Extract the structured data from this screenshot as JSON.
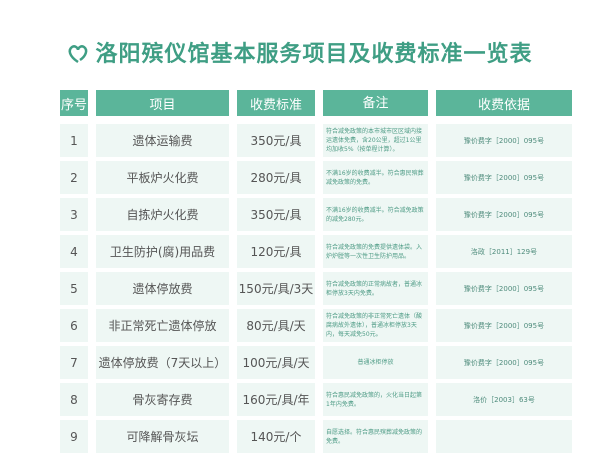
{
  "title": "洛阳殡仪馆基本服务项目及收费标准一览表",
  "headers": [
    "序号",
    "项目",
    "收费标准",
    "备注",
    "收费依据"
  ],
  "rows": [
    {
      "no": "1",
      "item": "遗体运输费",
      "price": "350元/具",
      "note": "符合减免政策的本市城市区区域内接运遗体免费，含20公里，超过1公里均加收5%（按单程计算）。",
      "basis": "豫价费字［2000］095号"
    },
    {
      "no": "2",
      "item": "平板炉火化费",
      "price": "280元/具",
      "note": "不满16岁的收费减半。符合惠民殡葬减免政策的免费。",
      "basis": "豫价费字［2000］095号"
    },
    {
      "no": "3",
      "item": "自拣炉火化费",
      "price": "350元/具",
      "note": "不满16岁的收费减半。符合减免政策的减免280元。",
      "basis": "豫价费字［2000］095号"
    },
    {
      "no": "4",
      "item": "卫生防护(腐)用品费",
      "price": "120元/具",
      "note": "符合减免政策的免费提供遗体袋。入炉炉膛等一次性卫生防护用品。",
      "basis": "洛政［2011］129号"
    },
    {
      "no": "5",
      "item": "遗体停放费",
      "price": "150元/具/3天",
      "note": "符合减免政策的正常病故者，普通冰柜停放3天内免费。",
      "basis": "豫价费字［2000］095号"
    },
    {
      "no": "6",
      "item": "非正常死亡遗体停放",
      "price": "80元/具/天",
      "note": "符合减免政策的非正常死亡遗体（酸腐病故外遗体），普通冰柜停放3天内，每天减免50元。",
      "basis": "豫价费字［2000］095号"
    },
    {
      "no": "7",
      "item": "遗体停放费（7天以上）",
      "price": "100元/具/天",
      "note": "普通冰柜停放",
      "basis": "豫价费字［2000］095号"
    },
    {
      "no": "8",
      "item": "骨灰寄存费",
      "price": "160元/具/年",
      "note": "符合惠民减免政策的，火化当日起第1年内免费。",
      "basis": "洛价［2003］63号"
    },
    {
      "no": "9",
      "item": "可降解骨灰坛",
      "price": "140元/个",
      "note": "自愿选择。符合惠民殡葬减免政策的免费。",
      "basis": ""
    }
  ],
  "colors": {
    "accent": "#5bb59a",
    "cell": "#eef7f4",
    "title": "#3f9e84"
  }
}
